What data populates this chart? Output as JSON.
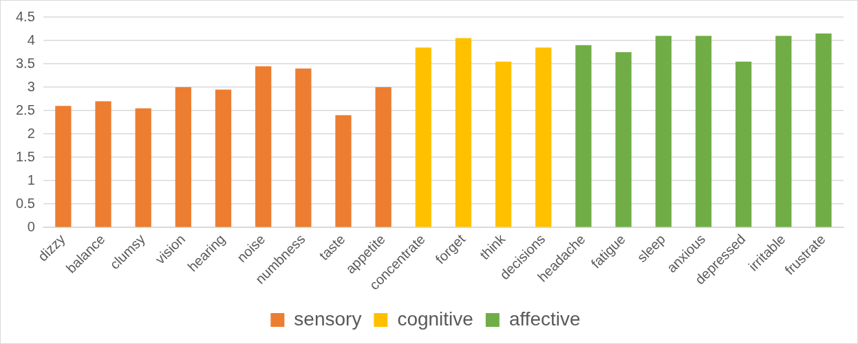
{
  "chart_data": {
    "type": "bar",
    "categories": [
      "dizzy",
      "balance",
      "clumsy",
      "vision",
      "hearing",
      "noise",
      "numbness",
      "taste",
      "appetite",
      "concentrate",
      "forget",
      "think",
      "decisions",
      "headache",
      "fatigue",
      "sleep",
      "anxious",
      "depressed",
      "irritable",
      "frustrate"
    ],
    "series": [
      {
        "name": "sensory",
        "color": "#ed7d31",
        "values": [
          2.6,
          2.7,
          2.55,
          3.0,
          2.95,
          3.45,
          3.4,
          2.4,
          3.0,
          null,
          null,
          null,
          null,
          null,
          null,
          null,
          null,
          null,
          null,
          null
        ]
      },
      {
        "name": "cognitive",
        "color": "#ffc000",
        "values": [
          null,
          null,
          null,
          null,
          null,
          null,
          null,
          null,
          null,
          3.85,
          4.05,
          3.55,
          3.85,
          null,
          null,
          null,
          null,
          null,
          null,
          null
        ]
      },
      {
        "name": "affective",
        "color": "#70ad47",
        "values": [
          null,
          null,
          null,
          null,
          null,
          null,
          null,
          null,
          null,
          null,
          null,
          null,
          null,
          3.9,
          3.75,
          4.1,
          4.1,
          3.55,
          4.1,
          4.15
        ]
      }
    ],
    "ylim": [
      0,
      4.5
    ],
    "yticks": [
      0,
      0.5,
      1,
      1.5,
      2,
      2.5,
      3,
      3.5,
      4,
      4.5
    ],
    "grid": "y",
    "legend": "bottom"
  }
}
